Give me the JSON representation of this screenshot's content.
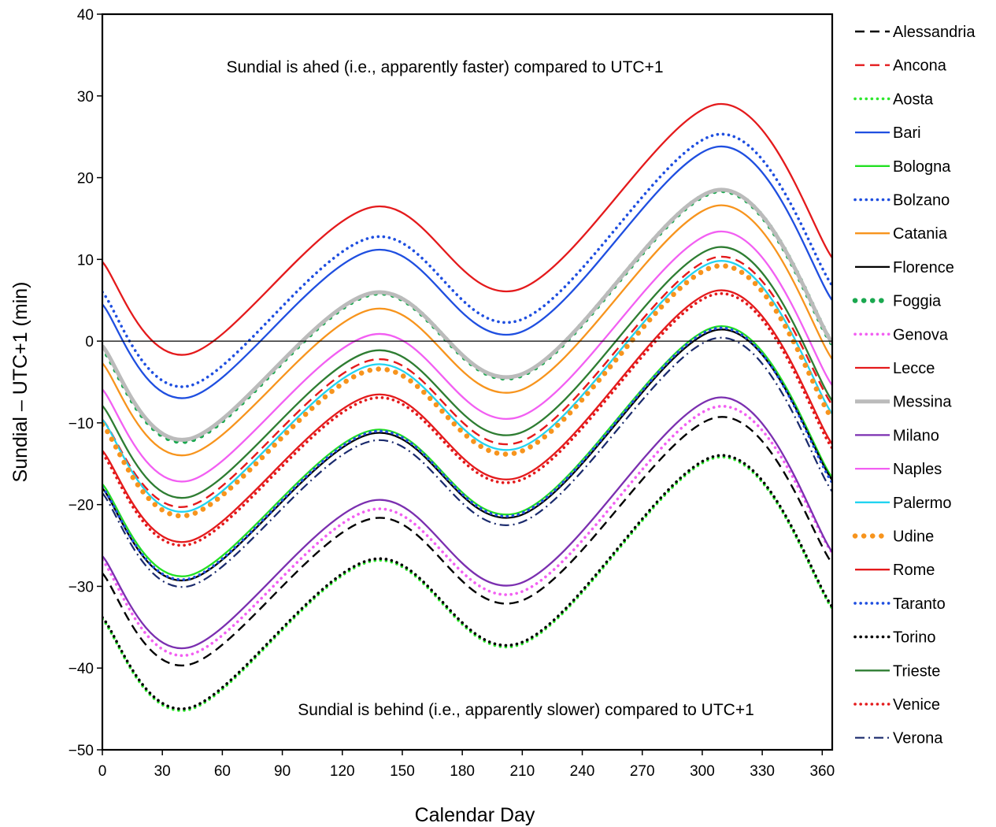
{
  "chart_data": {
    "type": "line",
    "title": "",
    "xlabel": "Calendar Day",
    "ylabel": "Sundial – UTC+1  (min)",
    "xlim": [
      0,
      365
    ],
    "ylim": [
      -50,
      40
    ],
    "xticks": [
      0,
      30,
      60,
      90,
      120,
      150,
      180,
      210,
      240,
      270,
      300,
      330,
      360
    ],
    "yticks": [
      40,
      30,
      20,
      10,
      0,
      -10,
      -20,
      -30,
      -40,
      -50
    ],
    "xtick_labels": [
      "0",
      "30",
      "60",
      "90",
      "120",
      "150",
      "180",
      "210",
      "240",
      "270",
      "300",
      "330",
      "360"
    ],
    "ytick_labels": [
      "40",
      "30",
      "20",
      "10",
      "0",
      "−10",
      "−20",
      "−30",
      "−40",
      "−50"
    ],
    "zero_line": true,
    "grid": false,
    "legend_position": "right",
    "annotations": [
      {
        "text": "Sundial is ahed (i.e., apparently faster) compared to UTC+1",
        "x": 168,
        "y": 34.5
      },
      {
        "text": "Sundial is behind (i.e., apparently slower) compared to UTC+1",
        "x": 243,
        "y": -45.5
      }
    ],
    "x": [
      0,
      43,
      135,
      208,
      308,
      365
    ],
    "series": [
      {
        "name": "Alessandria",
        "color": "#000000",
        "dash": "dash",
        "values": [
          -28.4,
          -39.6,
          -21.7,
          -31.9,
          -9.3,
          -27.2
        ]
      },
      {
        "name": "Ancona",
        "color": "#e41a1c",
        "dash": "dash",
        "values": [
          -9.6,
          -20.2,
          -2.3,
          -12.4,
          10.3,
          -7.8
        ]
      },
      {
        "name": "Aosta",
        "color": "#2ee82e",
        "dash": "dot",
        "values": [
          -34.0,
          -45.1,
          -26.9,
          -37.2,
          -14.2,
          -32.7
        ]
      },
      {
        "name": "Bari",
        "color": "#1f4fe0",
        "dash": "solid",
        "values": [
          4.5,
          -6.9,
          11.1,
          1.0,
          23.8,
          5.0
        ]
      },
      {
        "name": "Bologna",
        "color": "#22e022",
        "dash": "solid",
        "values": [
          -17.5,
          -28.7,
          -10.9,
          -21.0,
          1.8,
          -16.7
        ]
      },
      {
        "name": "Bolzano",
        "color": "#1f4fe0",
        "dash": "dot",
        "values": [
          6.0,
          -5.5,
          12.7,
          2.5,
          25.3,
          6.8
        ]
      },
      {
        "name": "Catania",
        "color": "#f7941d",
        "dash": "solid",
        "values": [
          -2.7,
          -13.9,
          3.9,
          -6.1,
          16.6,
          -2.2
        ]
      },
      {
        "name": "Florence",
        "color": "#000000",
        "dash": "solid",
        "values": [
          -18.0,
          -29.2,
          -11.3,
          -21.4,
          1.4,
          -17.0
        ]
      },
      {
        "name": "Foggia",
        "color": "#1aa84f",
        "dash": "bigdot",
        "values": [
          -0.8,
          -12.2,
          5.8,
          -4.3,
          18.4,
          -0.3
        ]
      },
      {
        "name": "Genova",
        "color": "#f25ff2",
        "dash": "dot",
        "values": [
          -26.8,
          -38.4,
          -20.6,
          -30.8,
          -8.0,
          -25.9
        ]
      },
      {
        "name": "Lecce",
        "color": "#e41a1c",
        "dash": "solid",
        "values": [
          9.7,
          -1.6,
          16.4,
          6.3,
          29.0,
          10.2
        ]
      },
      {
        "name": "Messina",
        "color": "#bbbbbb",
        "dash": "thick",
        "values": [
          -0.6,
          -12.0,
          5.9,
          -4.2,
          18.5,
          -0.2
        ]
      },
      {
        "name": "Milano",
        "color": "#7b2fb0",
        "dash": "solid",
        "values": [
          -26.3,
          -37.5,
          -19.5,
          -29.7,
          -6.9,
          -25.8
        ]
      },
      {
        "name": "Naples",
        "color": "#f25ff2",
        "dash": "solid",
        "values": [
          -5.9,
          -17.1,
          0.8,
          -9.3,
          13.4,
          -5.4
        ]
      },
      {
        "name": "Palermo",
        "color": "#22d3f0",
        "dash": "solid",
        "values": [
          -9.6,
          -20.8,
          -2.9,
          -13.1,
          9.8,
          -8.9
        ]
      },
      {
        "name": "Udine",
        "color": "#f7941d",
        "dash": "bigdot",
        "values": [
          -10.2,
          -21.3,
          -3.5,
          -13.6,
          9.2,
          -9.5
        ]
      },
      {
        "name": "Rome",
        "color": "#e41a1c",
        "dash": "solid",
        "values": [
          -13.4,
          -24.5,
          -6.6,
          -16.7,
          6.2,
          -12.6
        ]
      },
      {
        "name": "Taranto",
        "color": "#1f4fe0",
        "dash": "dot",
        "values": [
          -17.9,
          -29.1,
          -11.1,
          -21.2,
          1.6,
          -17.3
        ]
      },
      {
        "name": "Torino",
        "color": "#000000",
        "dash": "dot",
        "values": [
          -33.8,
          -44.9,
          -26.7,
          -37.0,
          -14.0,
          -32.5
        ]
      },
      {
        "name": "Trieste",
        "color": "#2e7d32",
        "dash": "solid",
        "values": [
          -7.9,
          -19.1,
          -1.2,
          -11.3,
          11.5,
          -7.3
        ]
      },
      {
        "name": "Venice",
        "color": "#e41a1c",
        "dash": "dot",
        "values": [
          -13.8,
          -24.9,
          -7.0,
          -17.1,
          5.8,
          -13.1
        ]
      },
      {
        "name": "Verona",
        "color": "#1a2a6c",
        "dash": "dashdot",
        "values": [
          -18.6,
          -30.0,
          -12.2,
          -22.3,
          0.4,
          -18.4
        ]
      }
    ]
  }
}
